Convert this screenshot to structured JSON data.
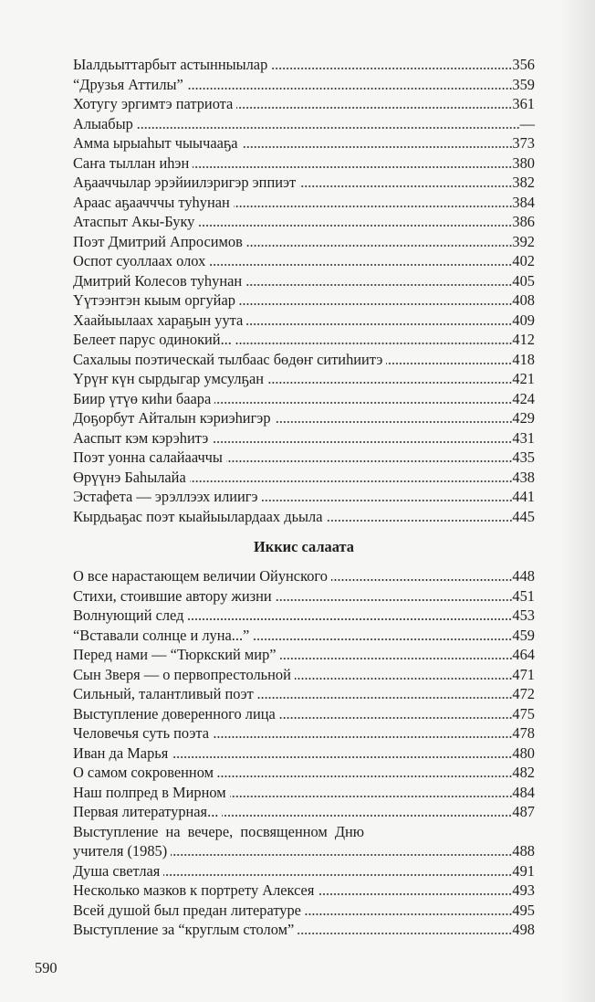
{
  "section1": {
    "entries": [
      {
        "title": "Ыалдьыттарбыт астынныылар",
        "page": "356"
      },
      {
        "title": "“Друзья Аттилы”",
        "page": "359"
      },
      {
        "title": "Хотугу эргимтэ патриота",
        "page": "361"
      },
      {
        "title": "Алыабыр",
        "page": "—"
      },
      {
        "title": "Амма ырыаһыт чыычааҕа",
        "page": "373"
      },
      {
        "title": "Саҥа тыллан иһэн",
        "page": "380"
      },
      {
        "title": "Аҕааччылар эрэйиилэригэр эппиэт",
        "page": "382"
      },
      {
        "title": "Араас аҕаачччы туһунан",
        "page": "384"
      },
      {
        "title": "Атаспыт Акы-Буку",
        "page": "386"
      },
      {
        "title": "Поэт Дмитрий Апросимов",
        "page": "392"
      },
      {
        "title": "Оспот суоллаах олох",
        "page": "402"
      },
      {
        "title": "Дмитрий Колесов туһунан",
        "page": "405"
      },
      {
        "title": "Үүтээнтэн кыым оргуйар",
        "page": "408"
      },
      {
        "title": "Хаайыылаах хараҕын уута",
        "page": "409"
      },
      {
        "title": "Белеет парус одинокий...",
        "page": "412"
      },
      {
        "title": "Сахалыы поэтическай тылбаас бөдөҥ ситиһиитэ",
        "page": "418"
      },
      {
        "title": "Үрүҥ күн сырдыгар умсулҕан",
        "page": "421"
      },
      {
        "title": "Биир үтүө киһи баара",
        "page": "424"
      },
      {
        "title": "Доҕорбут Айталын кэриэһигэр",
        "page": "429"
      },
      {
        "title": "Ааспыт кэм кэрэһитэ",
        "page": "431"
      },
      {
        "title": "Поэт уонна салайааччы",
        "page": "435"
      },
      {
        "title": "Өрүүнэ Баһылайа",
        "page": "438"
      },
      {
        "title": "Эстафета — эрэллээх илиигэ",
        "page": "441"
      },
      {
        "title": "Кырдьаҕас поэт кыайыылардаах дьыла",
        "page": "445"
      }
    ]
  },
  "section2": {
    "heading": "Иккис салаата",
    "entries": [
      {
        "title": "О все нарастающем величии Ойунского",
        "page": "448"
      },
      {
        "title": "Стихи, стоившие автору жизни",
        "page": "451"
      },
      {
        "title": "Волнующий след",
        "page": "453"
      },
      {
        "title": "“Вставали солнце и луна...”",
        "page": "459"
      },
      {
        "title": "Перед нами — “Тюркский мир”",
        "page": "464"
      },
      {
        "title": "Сын Зверя — о первопрестольной",
        "page": "471"
      },
      {
        "title": "Сильный, талантливый поэт",
        "page": "472"
      },
      {
        "title": "Выступление доверенного лица",
        "page": "475"
      },
      {
        "title": "Человечья суть поэта",
        "page": "478"
      },
      {
        "title": "Иван да Марья",
        "page": "480"
      },
      {
        "title": "О самом сокровенном",
        "page": "482"
      },
      {
        "title": "Наш полпред в Мирном",
        "page": "484"
      },
      {
        "title": "Первая литературная...",
        "page": "487"
      },
      {
        "title": "Выступление на вечере, посвященном Дню",
        "title_cont": "учителя (1985)",
        "page": "488"
      },
      {
        "title": "Душа светлая",
        "page": "491"
      },
      {
        "title": "Несколько мазков к портрету Алексея",
        "page": "493"
      },
      {
        "title": "Всей душой был предан литературе",
        "page": "495"
      },
      {
        "title": "Выступление за “круглым столом”",
        "page": "498"
      }
    ]
  },
  "folio": "590"
}
